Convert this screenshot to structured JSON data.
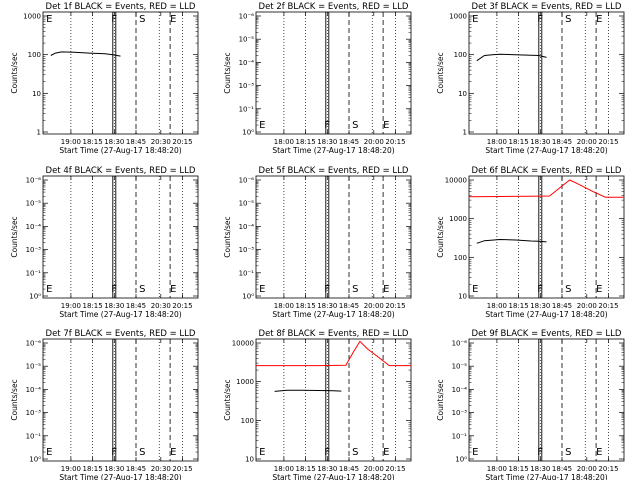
{
  "figure": {
    "panel_count": 9,
    "x_tick_labels": [
      "18:00",
      "18:15",
      "18:30",
      "18:45",
      "20:00",
      "20:15"
    ],
    "x_label": "Start Time (27-Aug-17 18:48:20)",
    "y_label": "Counts/sec",
    "colors": {
      "events": "#000000",
      "lld": "#ff0000",
      "frame": "#000000"
    }
  },
  "chart_data": [
    {
      "type": "line",
      "title": "Det 1f BLACK = Events, RED = LLD",
      "xlabel": "Start Time (27-Aug-17 18:48:20)",
      "ylabel": "Counts/sec",
      "yscale": "log",
      "yticks": [
        "1",
        "10",
        "100",
        "1000"
      ],
      "x_tick_labels": [
        "19:00",
        "18:15",
        "18:30",
        "18:45",
        "20:30",
        "20:15"
      ],
      "event_markers": [
        "E",
        "F",
        "S",
        "E"
      ],
      "series": [
        {
          "color": "#000000",
          "x": [
            0.05,
            0.08,
            0.12,
            0.2,
            0.3,
            0.4,
            0.45,
            0.5
          ],
          "y": [
            95,
            110,
            118,
            115,
            110,
            105,
            100,
            92
          ]
        }
      ]
    },
    {
      "type": "line",
      "title": "Det 2f BLACK = Events, RED = LLD",
      "xlabel": "Start Time (27-Aug-17 18:48:20)",
      "ylabel": "Counts/sec",
      "yscale": "log",
      "yticks": [
        "10⁰",
        "10⁻¹",
        "10⁻³",
        "10⁻⁴",
        "10⁻⁵",
        "10⁻⁶"
      ],
      "x_tick_labels": [
        "18:00",
        "18:15",
        "18:30",
        "18:45",
        "20:00",
        "20:15"
      ],
      "event_markers": [
        "E",
        "F",
        "S",
        "E"
      ],
      "series": []
    },
    {
      "type": "line",
      "title": "Det 3f BLACK = Events, RED = LLD",
      "xlabel": "Start Time (27-Aug-17 18:48:20)",
      "ylabel": "Counts/sec",
      "yscale": "log",
      "yticks": [
        "1",
        "10",
        "100",
        "1000"
      ],
      "x_tick_labels": [
        "18:00",
        "18:15",
        "18:30",
        "18:45",
        "20:00",
        "20:15"
      ],
      "event_markers": [
        "E",
        "F",
        "S",
        "E"
      ],
      "series": [
        {
          "color": "#000000",
          "x": [
            0.05,
            0.1,
            0.15,
            0.2,
            0.3,
            0.4,
            0.45,
            0.5
          ],
          "y": [
            70,
            95,
            100,
            102,
            100,
            97,
            95,
            85
          ]
        }
      ]
    },
    {
      "type": "line",
      "title": "Det 4f BLACK = Events, RED = LLD",
      "xlabel": "Start Time (27-Aug-17 18:48:20)",
      "ylabel": "Counts/sec",
      "yscale": "log",
      "yticks": [
        "10⁰",
        "10⁻¹",
        "10⁻³",
        "10⁻⁴",
        "10⁻⁵",
        "10⁻⁶"
      ],
      "x_tick_labels": [
        "19:00",
        "18:15",
        "18:30",
        "18:45",
        "20:30",
        "20:15"
      ],
      "event_markers": [
        "E",
        "F",
        "S",
        "E"
      ],
      "series": []
    },
    {
      "type": "line",
      "title": "Det 5f BLACK = Events, RED = LLD",
      "xlabel": "Start Time (27-Aug-17 18:48:20)",
      "ylabel": "Counts/sec",
      "yscale": "log",
      "yticks": [
        "10⁰",
        "10⁻¹",
        "10⁻³",
        "10⁻⁴",
        "10⁻⁵",
        "10⁻⁶"
      ],
      "x_tick_labels": [
        "18:00",
        "18:15",
        "18:30",
        "18:45",
        "20:00",
        "20:15"
      ],
      "event_markers": [
        "E",
        "F",
        "S",
        "E"
      ],
      "series": []
    },
    {
      "type": "line",
      "title": "Det 6f BLACK = Events, RED = LLD",
      "xlabel": "Start Time (27-Aug-17 18:48:20)",
      "ylabel": "Counts/sec",
      "yscale": "log",
      "yticks": [
        "10",
        "100",
        "1000",
        "10000"
      ],
      "x_tick_labels": [
        "18:00",
        "18:15",
        "18:30",
        "18:45",
        "20:00",
        "20:15"
      ],
      "event_markers": [
        "E",
        "F",
        "S",
        "E"
      ],
      "series": [
        {
          "color": "#ff0000",
          "x": [
            0.0,
            0.2,
            0.4,
            0.52,
            0.6,
            0.65,
            0.7,
            0.8,
            0.88,
            1.0
          ],
          "y": [
            3700,
            3750,
            3800,
            3850,
            7000,
            10000,
            8000,
            5000,
            3600,
            3600
          ]
        },
        {
          "color": "#000000",
          "x": [
            0.05,
            0.1,
            0.2,
            0.3,
            0.4,
            0.45,
            0.5
          ],
          "y": [
            230,
            270,
            290,
            280,
            265,
            260,
            250
          ]
        }
      ]
    },
    {
      "type": "line",
      "title": "Det 7f BLACK = Events, RED = LLD",
      "xlabel": "Start Time (27-Aug-17 18:48:20)",
      "ylabel": "Counts/sec",
      "yscale": "log",
      "yticks": [
        "10⁰",
        "10⁻¹",
        "10⁻³",
        "10⁻⁴",
        "10⁻⁵",
        "10⁻⁶"
      ],
      "x_tick_labels": [
        "19:00",
        "18:15",
        "18:30",
        "18:45",
        "20:30",
        "20:15"
      ],
      "event_markers": [
        "E",
        "F",
        "S",
        "E"
      ],
      "series": []
    },
    {
      "type": "line",
      "title": "Det 8f BLACK = Events, RED = LLD",
      "xlabel": "Start Time (27-Aug-17 18:48:20)",
      "ylabel": "Counts/sec",
      "yscale": "log",
      "yticks": [
        "10",
        "100",
        "1000",
        "10000"
      ],
      "x_tick_labels": [
        "18:00",
        "18:15",
        "18:30",
        "18:45",
        "20:00",
        "20:15"
      ],
      "event_markers": [
        "E",
        "F",
        "S",
        "E"
      ],
      "series": [
        {
          "color": "#ff0000",
          "x": [
            0.0,
            0.2,
            0.4,
            0.58,
            0.63,
            0.67,
            0.72,
            0.8,
            0.86,
            1.0
          ],
          "y": [
            2600,
            2600,
            2600,
            2650,
            6000,
            11000,
            7000,
            4000,
            2600,
            2600
          ]
        },
        {
          "color": "#000000",
          "x": [
            0.12,
            0.2,
            0.3,
            0.4,
            0.5,
            0.55
          ],
          "y": [
            560,
            600,
            600,
            590,
            580,
            570
          ]
        }
      ]
    },
    {
      "type": "line",
      "title": "Det 9f BLACK = Events, RED = LLD",
      "xlabel": "Start Time (27-Aug-17 18:48:20)",
      "ylabel": "Counts/sec",
      "yscale": "log",
      "yticks": [
        "10⁰",
        "10⁻¹",
        "10⁻³",
        "10⁻⁴",
        "10⁻⁵",
        "10⁻⁶"
      ],
      "x_tick_labels": [
        "18:00",
        "18:15",
        "18:30",
        "18:45",
        "20:00",
        "20:15"
      ],
      "event_markers": [
        "E",
        "F",
        "S",
        "E"
      ],
      "series": []
    }
  ]
}
